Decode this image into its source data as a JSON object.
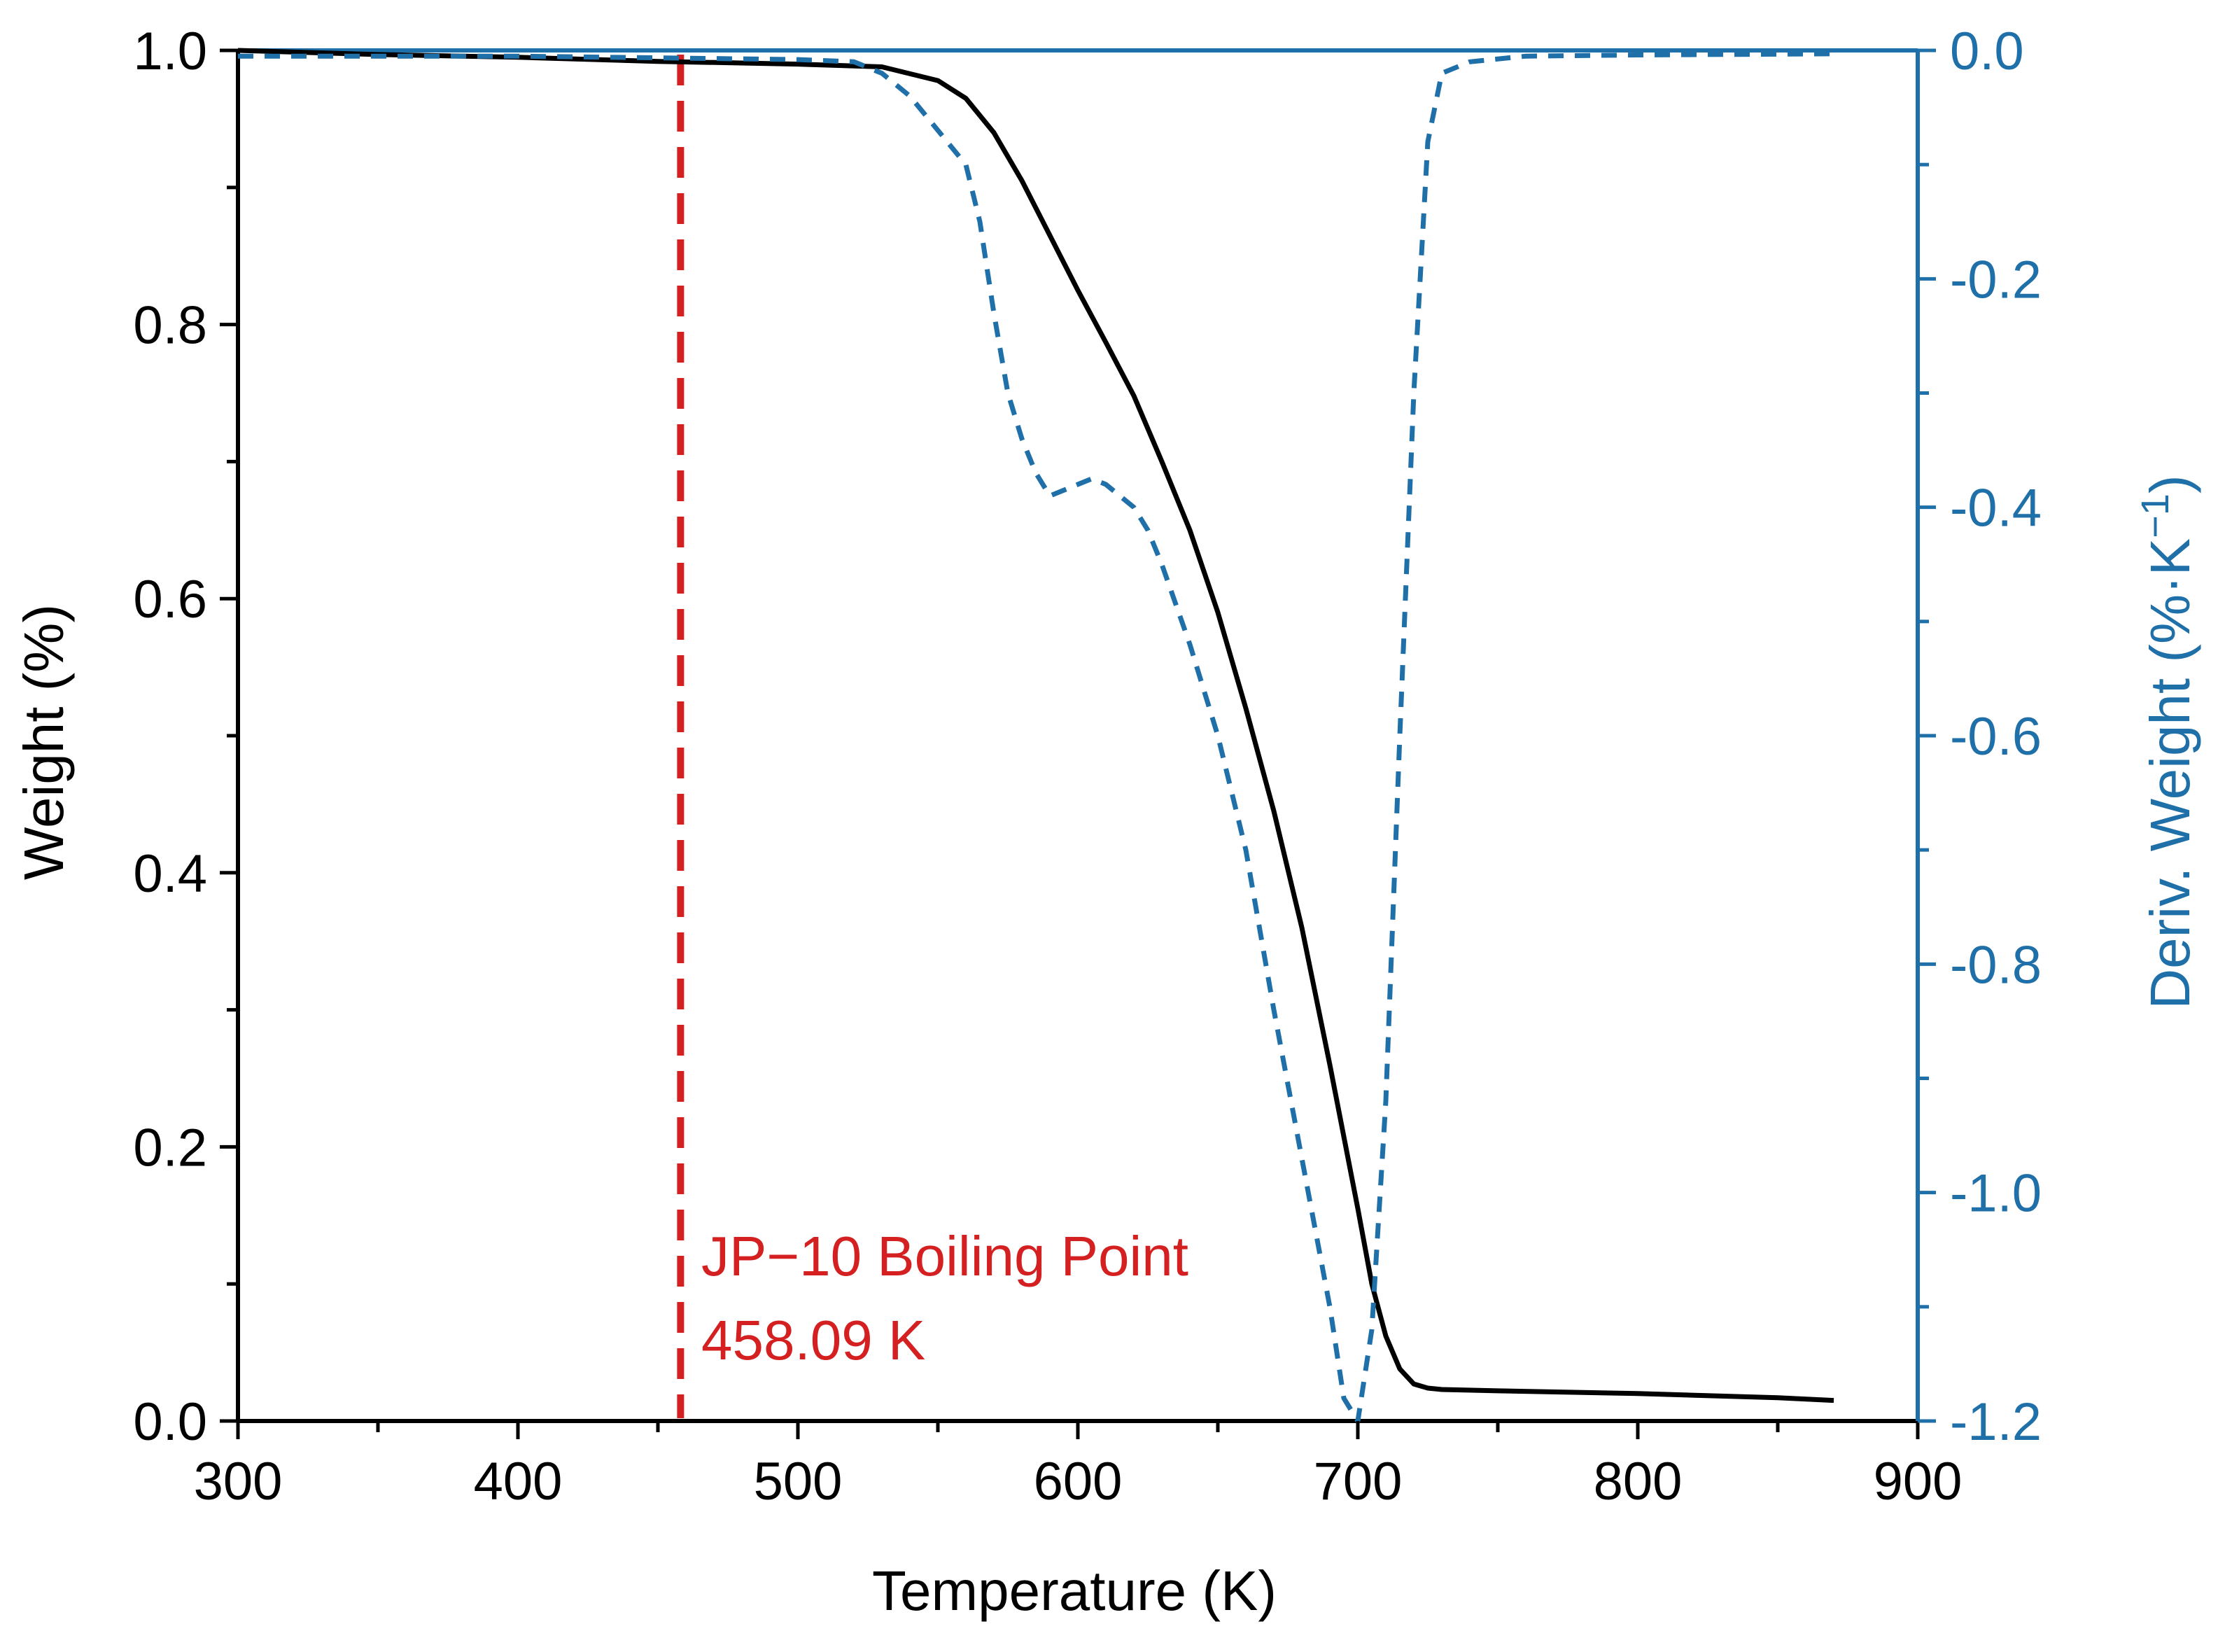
{
  "chart_data": {
    "type": "line",
    "xlabel": "Temperature (K)",
    "ylabel": "Weight (%)",
    "y2label_main": "Deriv. Weight (%·K",
    "y2label_sup": "−1",
    "y2label_close": ")",
    "xlim": [
      300,
      900
    ],
    "ylim": [
      0.0,
      1.0
    ],
    "y2lim": [
      -1.2,
      0.0
    ],
    "xticks": [
      300,
      400,
      500,
      600,
      700,
      800,
      900
    ],
    "xtick_labels": [
      "300",
      "400",
      "500",
      "600",
      "700",
      "800",
      "900"
    ],
    "yticks": [
      0.0,
      0.2,
      0.4,
      0.6,
      0.8,
      1.0
    ],
    "ytick_labels": [
      "0.0",
      "0.2",
      "0.4",
      "0.6",
      "0.8",
      "1.0"
    ],
    "y2ticks": [
      -1.2,
      -1.0,
      -0.8,
      -0.6,
      -0.4,
      -0.2,
      0.0
    ],
    "y2tick_labels": [
      "-1.2",
      "-1.0",
      "-0.8",
      "-0.6",
      "-0.4",
      "-0.2",
      "0.0"
    ],
    "colors": {
      "weight": "#000000",
      "deriv": "#1f6fa8",
      "boiling": "#d42020",
      "left_axis": "#000000",
      "right_axis": "#1f6fa8"
    },
    "boiling_point": {
      "x": 458.09,
      "line1": "JP−10 Boiling Point",
      "line2": "458.09 K"
    },
    "series": [
      {
        "name": "Weight",
        "axis": "left",
        "style": "solid",
        "x": [
          300,
          350,
          400,
          450,
          500,
          530,
          550,
          560,
          570,
          580,
          590,
          600,
          610,
          620,
          630,
          640,
          650,
          660,
          670,
          680,
          690,
          700,
          705,
          710,
          715,
          720,
          725,
          730,
          750,
          800,
          850,
          870
        ],
        "y": [
          1.0,
          0.997,
          0.995,
          0.992,
          0.99,
          0.988,
          0.978,
          0.965,
          0.94,
          0.905,
          0.865,
          0.825,
          0.787,
          0.748,
          0.7,
          0.65,
          0.59,
          0.52,
          0.445,
          0.36,
          0.26,
          0.155,
          0.1,
          0.062,
          0.038,
          0.027,
          0.024,
          0.023,
          0.022,
          0.02,
          0.017,
          0.015
        ]
      },
      {
        "name": "Deriv. Weight",
        "axis": "right",
        "style": "dashed",
        "x": [
          300,
          400,
          500,
          520,
          530,
          540,
          550,
          560,
          565,
          570,
          575,
          580,
          585,
          590,
          595,
          600,
          605,
          610,
          615,
          620,
          625,
          630,
          640,
          650,
          660,
          670,
          680,
          690,
          695,
          700,
          705,
          710,
          715,
          720,
          725,
          730,
          740,
          760,
          800,
          870
        ],
        "y": [
          -0.005,
          -0.005,
          -0.008,
          -0.01,
          -0.02,
          -0.04,
          -0.07,
          -0.1,
          -0.15,
          -0.23,
          -0.3,
          -0.34,
          -0.37,
          -0.39,
          -0.385,
          -0.38,
          -0.375,
          -0.38,
          -0.39,
          -0.4,
          -0.42,
          -0.45,
          -0.52,
          -0.6,
          -0.7,
          -0.84,
          -0.97,
          -1.1,
          -1.18,
          -1.2,
          -1.12,
          -0.92,
          -0.6,
          -0.3,
          -0.08,
          -0.02,
          -0.01,
          -0.005,
          -0.004,
          -0.003
        ]
      }
    ]
  }
}
